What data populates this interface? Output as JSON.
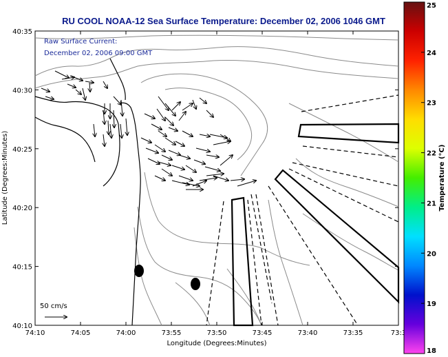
{
  "title": "RU COOL  NOAA-12  Sea Surface Temperature:  December 02, 2006 1046 GMT",
  "annotation": {
    "line1": "Raw Surface Current:",
    "line2": "December 02, 2006 09:00 GMT"
  },
  "x_axis": {
    "label": "Longitude (Degrees:Minutes)",
    "ticks": [
      "74:10",
      "74:05",
      "74:00",
      "73:55",
      "73:50",
      "73:45",
      "73:40",
      "73:35",
      "73:3"
    ]
  },
  "y_axis": {
    "label": "Latitude (Degrees:Minutes)",
    "ticks": [
      "40:35",
      "40:30",
      "40:25",
      "40:20",
      "40:15",
      "40:10"
    ]
  },
  "colorbar": {
    "label": "Temperature (°C)",
    "ticks": [
      "25",
      "24",
      "23",
      "22",
      "21",
      "20",
      "19",
      "18"
    ],
    "min": 18,
    "max": 25,
    "colors": [
      "#ff44ee",
      "#6600dd",
      "#0011cc",
      "#0088ff",
      "#00e0ff",
      "#00ee88",
      "#44ee00",
      "#ddff00",
      "#ffdd00",
      "#ff8800",
      "#ff2200",
      "#cc0000",
      "#661111"
    ]
  },
  "scale_bar": {
    "label": "50 cm/s"
  }
}
